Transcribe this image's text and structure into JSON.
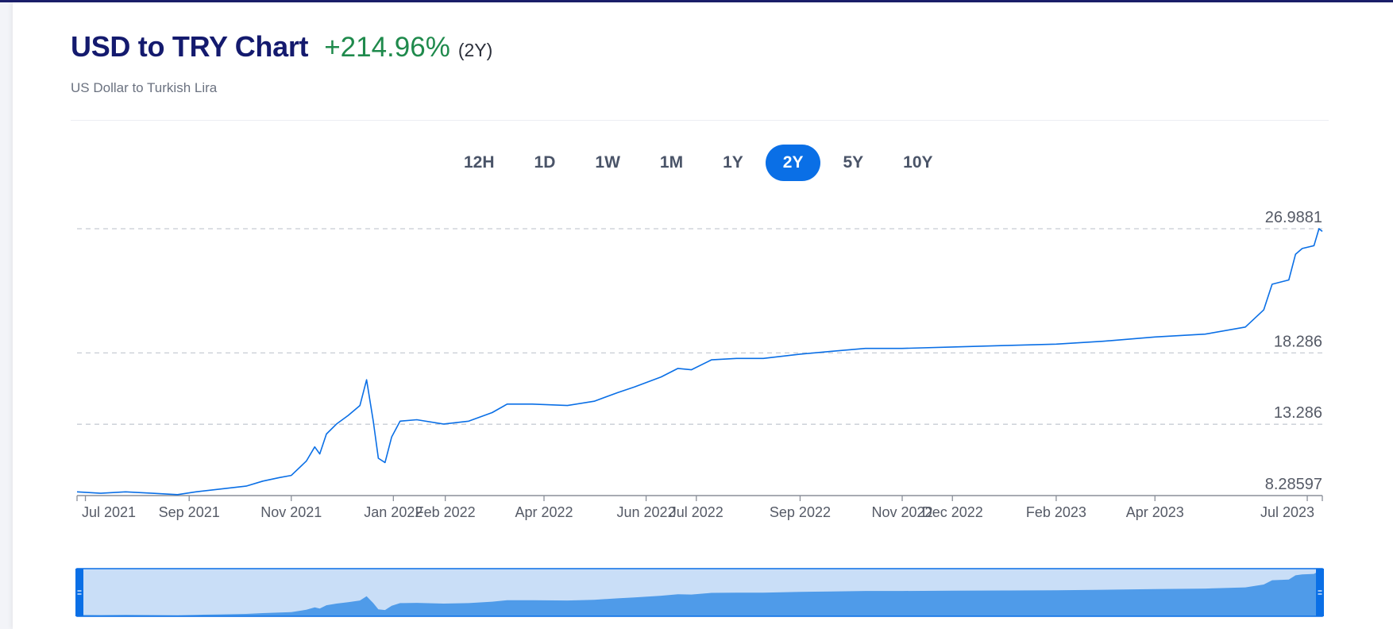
{
  "header": {
    "title": "USD to TRY Chart",
    "change": "+214.96%",
    "period": "(2Y)",
    "subtitle": "US Dollar to Turkish Lira"
  },
  "tabs": [
    {
      "label": "12H",
      "active": false
    },
    {
      "label": "1D",
      "active": false
    },
    {
      "label": "1W",
      "active": false
    },
    {
      "label": "1M",
      "active": false
    },
    {
      "label": "1Y",
      "active": false
    },
    {
      "label": "2Y",
      "active": true
    },
    {
      "label": "5Y",
      "active": false
    },
    {
      "label": "10Y",
      "active": false
    }
  ],
  "colors": {
    "line": "#0a6fe6",
    "navigator_fill": "#4f9be9",
    "navigator_bg": "#c9def7",
    "navigator_handle": "#0a6fe6",
    "accent": "#0a6fe6",
    "positive": "#1f8a4c"
  },
  "chart_data": {
    "type": "line",
    "title": "USD to TRY Chart",
    "y_ticks": [
      {
        "label": "8.28597",
        "value": 8.28597
      },
      {
        "label": "13.286",
        "value": 13.286
      },
      {
        "label": "18.286",
        "value": 18.286
      },
      {
        "label": "26.9881",
        "value": 26.9881
      }
    ],
    "ylim": [
      8.28597,
      26.9881
    ],
    "xlim": [
      "2021-06-26",
      "2023-07-10"
    ],
    "grid": "horizontal-dashed",
    "x_ticks": [
      {
        "label": "Jul 2021",
        "date": "2021-07-01"
      },
      {
        "label": "Sep 2021",
        "date": "2021-09-01"
      },
      {
        "label": "Nov 2021",
        "date": "2021-11-01"
      },
      {
        "label": "Jan 2022",
        "date": "2022-01-01"
      },
      {
        "label": "Feb 2022",
        "date": "2022-02-01"
      },
      {
        "label": "Apr 2022",
        "date": "2022-04-01"
      },
      {
        "label": "Jun 2022",
        "date": "2022-06-01"
      },
      {
        "label": "Jul 2022",
        "date": "2022-07-01"
      },
      {
        "label": "Sep 2022",
        "date": "2022-09-01"
      },
      {
        "label": "Nov 2022",
        "date": "2022-11-01"
      },
      {
        "label": "Dec 2022",
        "date": "2022-12-01"
      },
      {
        "label": "Feb 2023",
        "date": "2023-02-01"
      },
      {
        "label": "Apr 2023",
        "date": "2023-04-01"
      },
      {
        "label": "Jul 2023",
        "date": "2023-07-01"
      }
    ],
    "series": [
      {
        "points": [
          [
            "2021-06-26",
            8.55
          ],
          [
            "2021-07-10",
            8.45
          ],
          [
            "2021-07-25",
            8.55
          ],
          [
            "2021-08-10",
            8.45
          ],
          [
            "2021-08-25",
            8.35
          ],
          [
            "2021-09-05",
            8.55
          ],
          [
            "2021-09-20",
            8.75
          ],
          [
            "2021-10-05",
            8.95
          ],
          [
            "2021-10-15",
            9.3
          ],
          [
            "2021-10-25",
            9.55
          ],
          [
            "2021-11-01",
            9.7
          ],
          [
            "2021-11-10",
            10.7
          ],
          [
            "2021-11-15",
            11.7
          ],
          [
            "2021-11-18",
            11.2
          ],
          [
            "2021-11-22",
            12.6
          ],
          [
            "2021-11-28",
            13.3
          ],
          [
            "2021-12-05",
            13.9
          ],
          [
            "2021-12-12",
            14.6
          ],
          [
            "2021-12-16",
            16.4
          ],
          [
            "2021-12-20",
            13.5
          ],
          [
            "2021-12-23",
            10.9
          ],
          [
            "2021-12-27",
            10.6
          ],
          [
            "2021-12-31",
            12.4
          ],
          [
            "2022-01-05",
            13.5
          ],
          [
            "2022-01-15",
            13.6
          ],
          [
            "2022-01-31",
            13.3
          ],
          [
            "2022-02-15",
            13.5
          ],
          [
            "2022-03-01",
            14.1
          ],
          [
            "2022-03-10",
            14.7
          ],
          [
            "2022-03-25",
            14.7
          ],
          [
            "2022-04-15",
            14.6
          ],
          [
            "2022-05-01",
            14.9
          ],
          [
            "2022-05-15",
            15.5
          ],
          [
            "2022-05-25",
            15.9
          ],
          [
            "2022-06-10",
            16.6
          ],
          [
            "2022-06-20",
            17.2
          ],
          [
            "2022-06-28",
            17.1
          ],
          [
            "2022-07-10",
            17.8
          ],
          [
            "2022-07-25",
            17.9
          ],
          [
            "2022-08-10",
            17.9
          ],
          [
            "2022-09-01",
            18.2
          ],
          [
            "2022-09-20",
            18.4
          ],
          [
            "2022-10-10",
            18.6
          ],
          [
            "2022-11-01",
            18.6
          ],
          [
            "2022-12-01",
            18.7
          ],
          [
            "2023-01-01",
            18.8
          ],
          [
            "2023-02-01",
            18.9
          ],
          [
            "2023-03-01",
            19.1
          ],
          [
            "2023-04-01",
            19.4
          ],
          [
            "2023-05-01",
            19.6
          ],
          [
            "2023-05-25",
            20.1
          ],
          [
            "2023-06-05",
            21.3
          ],
          [
            "2023-06-10",
            23.1
          ],
          [
            "2023-06-20",
            23.4
          ],
          [
            "2023-06-24",
            25.2
          ],
          [
            "2023-06-28",
            25.6
          ],
          [
            "2023-07-05",
            25.8
          ],
          [
            "2023-07-08",
            26.9881
          ],
          [
            "2023-07-10",
            26.8
          ]
        ]
      }
    ]
  }
}
